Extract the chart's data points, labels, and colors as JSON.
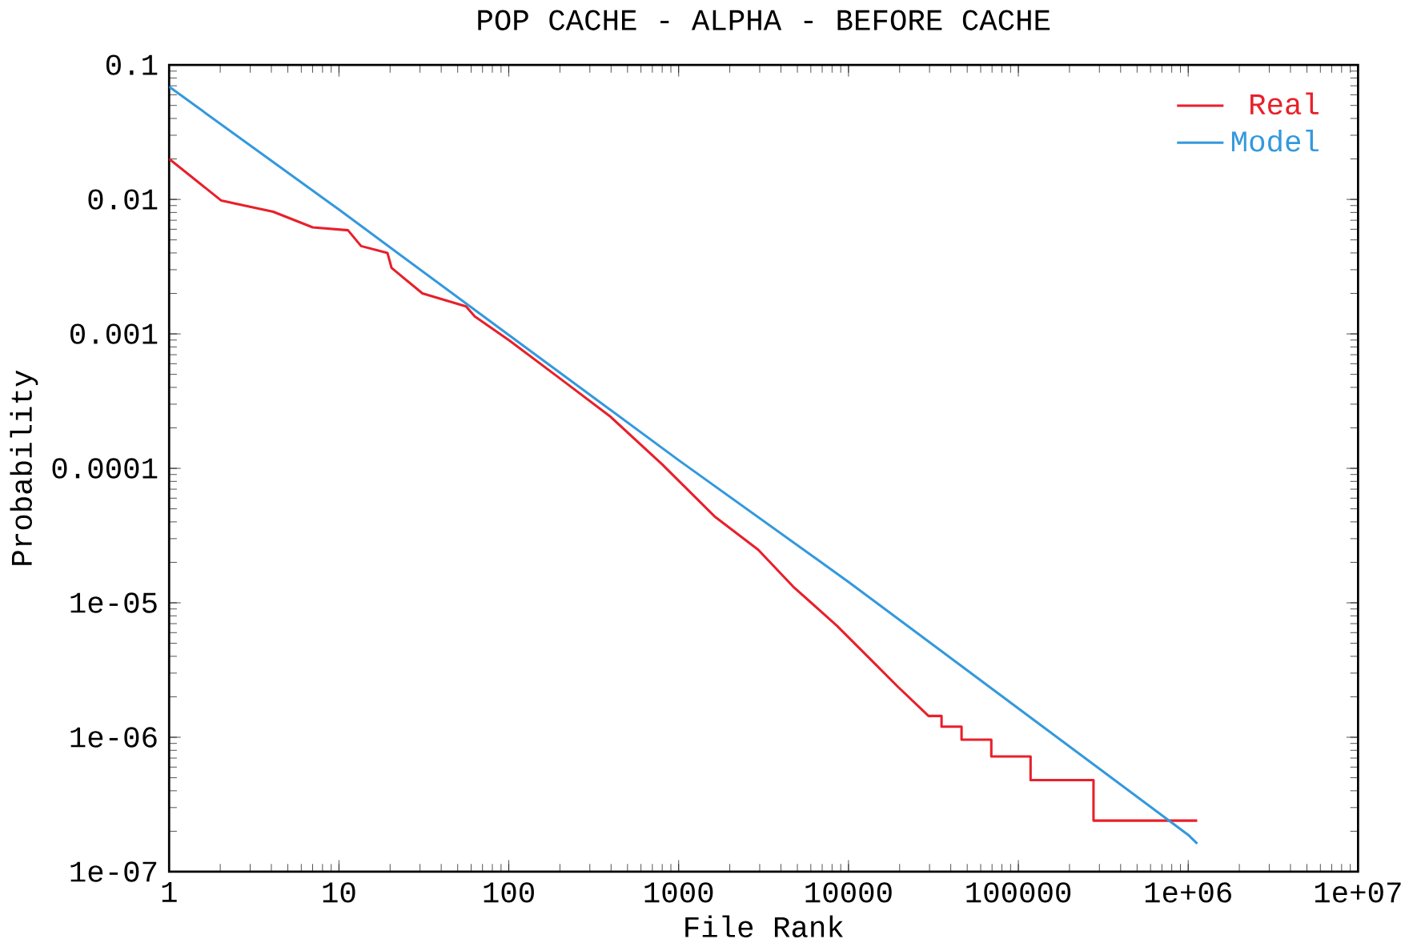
{
  "chart_data": {
    "type": "line",
    "title": "POP CACHE - ALPHA - BEFORE CACHE",
    "xlabel": "File Rank",
    "ylabel": "Probability",
    "log": "xy",
    "grid": false,
    "legend": "top right",
    "marker": "none",
    "line_style": "solid",
    "xlim": [
      1,
      10000000
    ],
    "ylim": [
      1e-07,
      0.1
    ],
    "xticks": [
      1,
      10,
      100,
      1000,
      10000,
      100000,
      {
        "value": 1000000,
        "label": "1e+06"
      },
      {
        "value": 10000000,
        "label": "1e+07"
      }
    ],
    "yticks": [
      {
        "value": 1e-07,
        "label": "1e-07"
      },
      {
        "value": 1e-06,
        "label": "1e-06"
      },
      {
        "value": 1e-05,
        "label": "1e-05"
      },
      0.0001,
      0.001,
      0.01,
      0.1
    ],
    "series": [
      {
        "name": "Real",
        "color": "#e8202a",
        "x": [
          1,
          2.03,
          4.1,
          7,
          11.3,
          13.5,
          19.3,
          20.4,
          31,
          56,
          63,
          101,
          194,
          394,
          800,
          1624,
          2940,
          4720,
          8540,
          13700,
          19500,
          29600,
          35300,
          35300,
          46300,
          46300,
          69300,
          69300,
          118000,
          118000,
          277000,
          277000,
          1130000
        ],
        "values": [
          0.02,
          0.0098,
          0.0081,
          0.0062,
          0.0059,
          0.0045,
          0.004,
          0.0031,
          0.002,
          0.0016,
          0.00135,
          0.00089,
          0.00048,
          0.000244,
          0.000107,
          4.4e-05,
          2.48e-05,
          1.32e-05,
          6.76e-06,
          3.72e-06,
          2.38e-06,
          1.44e-06,
          1.44e-06,
          1.2e-06,
          1.2e-06,
          9.6e-07,
          9.6e-07,
          7.2e-07,
          7.2e-07,
          4.8e-07,
          4.8e-07,
          2.4e-07,
          2.4e-07
        ]
      },
      {
        "name": "Model",
        "color": "#3399dd",
        "x": [
          1,
          10,
          100,
          1000,
          10000,
          100000,
          1000000,
          1130000
        ],
        "values": [
          0.0689,
          0.0084,
          0.00098,
          0.000115,
          1.43e-05,
          1.64e-06,
          1.88e-07,
          1.62e-07
        ]
      }
    ]
  }
}
